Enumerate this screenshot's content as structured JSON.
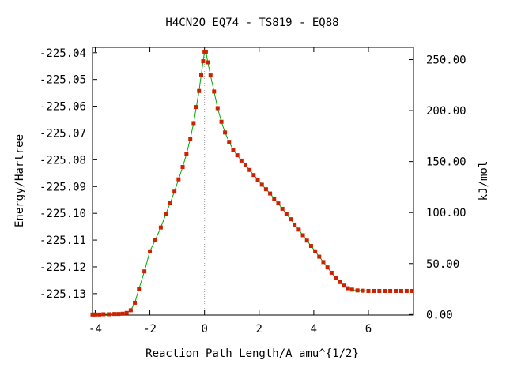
{
  "chart_data": {
    "type": "line",
    "title": "H4CN2O   EQ74 - TS819 - EQ88",
    "xlabel": "Reaction Path Length/A amu^{1/2}",
    "ylabel": "Energy/Hartree",
    "y2label": "kJ/mol",
    "xlim": [
      -4.1,
      7.65
    ],
    "ylim": [
      -225.138,
      -225.038
    ],
    "x_ticks": [
      -4,
      -2,
      0,
      2,
      4,
      6
    ],
    "x_tick_labels": [
      "-4",
      "-2",
      "0",
      "2",
      "4",
      "6"
    ],
    "y_ticks": [
      -225.04,
      -225.05,
      -225.06,
      -225.07,
      -225.08,
      -225.09,
      -225.1,
      -225.11,
      -225.12,
      -225.13
    ],
    "y_tick_labels": [
      "-225.04",
      "-225.05",
      "-225.06",
      "-225.07",
      "-225.08",
      "-225.09",
      "-225.10",
      "-225.11",
      "-225.12",
      "-225.13"
    ],
    "y2_ticks": [
      0,
      50,
      100,
      150,
      200,
      250
    ],
    "y2_tick_labels": [
      "0.00",
      "50.00",
      "100.00",
      "150.00",
      "200.00",
      "250.00"
    ],
    "y2_zero_hartree": -225.1378,
    "ts_x": 0,
    "grid": false,
    "line_color": "#00aa00",
    "marker_color": "#cc2200",
    "ts_line_color": "#999999",
    "series": [
      {
        "x": [
          -4.1,
          -4.0,
          -3.85,
          -3.7,
          -3.5,
          -3.3,
          -3.15,
          -3.0,
          -2.85,
          -2.7,
          -2.55,
          -2.4,
          -2.2,
          -2.0,
          -1.8,
          -1.6,
          -1.42,
          -1.25,
          -1.1,
          -0.95,
          -0.8,
          -0.66,
          -0.52,
          -0.4,
          -0.3,
          -0.2,
          -0.12,
          -0.05,
          0.0,
          0.05,
          0.12,
          0.22,
          0.35,
          0.48,
          0.62,
          0.75,
          0.9,
          1.05,
          1.2,
          1.35,
          1.5,
          1.65,
          1.8,
          1.95,
          2.1,
          2.25,
          2.4,
          2.55,
          2.7,
          2.85,
          3.0,
          3.15,
          3.3,
          3.45,
          3.6,
          3.75,
          3.9,
          4.05,
          4.2,
          4.35,
          4.5,
          4.65,
          4.8,
          4.95,
          5.1,
          5.25,
          5.4,
          5.6,
          5.8,
          6.0,
          6.2,
          6.4,
          6.6,
          6.8,
          7.0,
          7.2,
          7.4,
          7.6
        ],
        "y": [
          -225.1378,
          -225.1378,
          -225.1378,
          -225.1377,
          -225.1377,
          -225.1376,
          -225.1376,
          -225.1375,
          -225.1372,
          -225.1362,
          -225.1334,
          -225.1282,
          -225.1217,
          -225.1142,
          -225.1099,
          -225.1053,
          -225.1004,
          -225.096,
          -225.0919,
          -225.0873,
          -225.0827,
          -225.0779,
          -225.0721,
          -225.0663,
          -225.0603,
          -225.0543,
          -225.0482,
          -225.0432,
          -225.0396,
          -225.0396,
          -225.0436,
          -225.0485,
          -225.0545,
          -225.0607,
          -225.0658,
          -225.0698,
          -225.0733,
          -225.0763,
          -225.0783,
          -225.0803,
          -225.082,
          -225.0838,
          -225.0857,
          -225.0874,
          -225.0893,
          -225.091,
          -225.0926,
          -225.0946,
          -225.0963,
          -225.0983,
          -225.1003,
          -225.1022,
          -225.1042,
          -225.1061,
          -225.1082,
          -225.1102,
          -225.1122,
          -225.1142,
          -225.1162,
          -225.1182,
          -225.1202,
          -225.1222,
          -225.1241,
          -225.1257,
          -225.127,
          -225.128,
          -225.1285,
          -225.1288,
          -225.1289,
          -225.129,
          -225.129,
          -225.129,
          -225.129,
          -225.129,
          -225.129,
          -225.129,
          -225.129,
          -225.129
        ]
      }
    ]
  }
}
